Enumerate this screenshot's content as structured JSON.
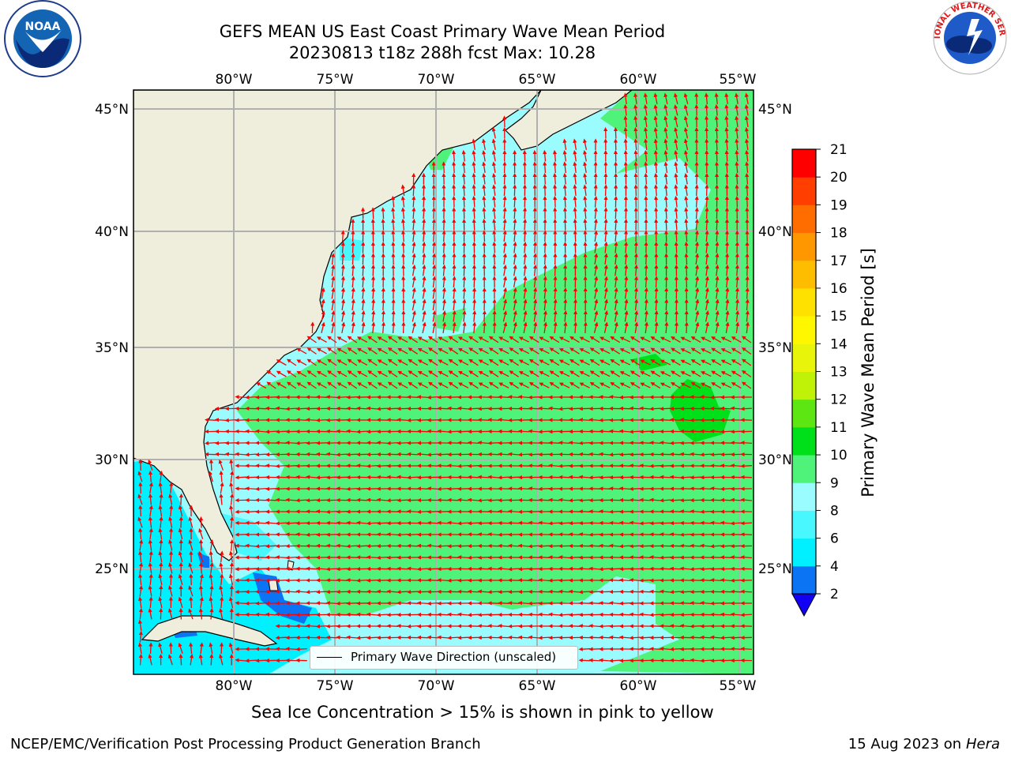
{
  "title_line1": "GEFS MEAN US East Coast Primary Wave Mean Period",
  "title_line2": "20230813 t18z 288h fcst   Max: 10.28",
  "lon_labels": [
    "80°W",
    "75°W",
    "70°W",
    "65°W",
    "60°W",
    "55°W"
  ],
  "lat_labels": [
    "45°N",
    "40°N",
    "35°N",
    "30°N",
    "25°N"
  ],
  "colorbar": {
    "label": "Primary Wave Mean Period [s]",
    "ticks": [
      "2",
      "4",
      "6",
      "8",
      "9",
      "10",
      "11",
      "12",
      "13",
      "14",
      "15",
      "16",
      "17",
      "18",
      "19",
      "20",
      "21"
    ],
    "colors": [
      "#0a74f4",
      "#00f0ff",
      "#49f8ff",
      "#9bfcff",
      "#50f37a",
      "#00e01a",
      "#5de611",
      "#bff207",
      "#e8f50b",
      "#fff700",
      "#ffe100",
      "#ffbd00",
      "#ff9800",
      "#ff6d00",
      "#ff3e00",
      "#ff0000"
    ],
    "extend_color": "#1200f5"
  },
  "legend_label": "Primary Wave Direction (unscaled)",
  "footnote": "Sea Ice Concentration > 15% is shown in pink to yellow",
  "footer_left": "NCEP/EMC/Verification Post Processing Product Generation Branch",
  "footer_right_date": "15 Aug 2023 on",
  "footer_right_machine": "Hera",
  "logo_left": "NOAA",
  "logo_right_text": "NATIONAL WEATHER SERVICE",
  "colors": {
    "land": "#efeddb",
    "arrow": "#ff0000",
    "grid": "#b0b0b0"
  }
}
